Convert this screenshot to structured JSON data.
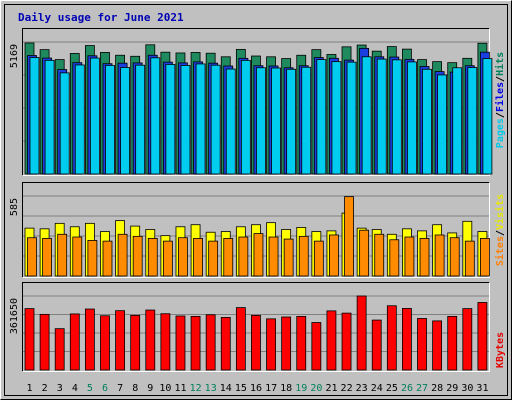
{
  "chart_data": [
    {
      "type": "bar",
      "title": "Daily usage for June 2021",
      "categories": [
        "1",
        "2",
        "3",
        "4",
        "5",
        "6",
        "7",
        "8",
        "9",
        "10",
        "11",
        "12",
        "13",
        "14",
        "15",
        "16",
        "17",
        "18",
        "19",
        "20",
        "21",
        "22",
        "23",
        "24",
        "25",
        "26",
        "27",
        "28",
        "29",
        "30",
        "31"
      ],
      "weekend_day_color": "#00805c",
      "weekend_days": [
        "5",
        "6",
        "12",
        "13",
        "19",
        "20",
        "26",
        "27"
      ],
      "y_max_label": "5169",
      "ylim": [
        0,
        5169
      ],
      "grid": true,
      "legend_words": [
        {
          "text": "Pages",
          "color": "#00c8e8"
        },
        {
          "text": "Files",
          "color": "#0000e8"
        },
        {
          "text": "Hits",
          "color": "#00805c"
        }
      ],
      "legend_separator": "/",
      "legend_separator_color": "#000000",
      "series": [
        {
          "name": "Hits",
          "color": "#1e8a5e",
          "values": [
            5130,
            4870,
            4480,
            4720,
            5030,
            4760,
            4650,
            4610,
            5060,
            4770,
            4740,
            4760,
            4730,
            4590,
            4880,
            4620,
            4590,
            4520,
            4650,
            4870,
            4680,
            4980,
            5050,
            4810,
            4990,
            4890,
            4480,
            4400,
            4360,
            4530,
            5120
          ]
        },
        {
          "name": "Files",
          "color": "#1a3ee0",
          "values": [
            4640,
            4540,
            4090,
            4360,
            4630,
            4320,
            4340,
            4350,
            4650,
            4380,
            4350,
            4390,
            4340,
            4230,
            4530,
            4240,
            4230,
            4160,
            4240,
            4560,
            4530,
            4460,
            4920,
            4590,
            4580,
            4490,
            4210,
            4010,
            3990,
            4240,
            4770
          ]
        },
        {
          "name": "Pages",
          "color": "#00ccf0",
          "values": [
            4560,
            4450,
            3960,
            4270,
            4540,
            4250,
            4170,
            4260,
            4550,
            4290,
            4250,
            4310,
            4260,
            4110,
            4450,
            4160,
            4150,
            4100,
            4180,
            4480,
            4400,
            4380,
            4590,
            4500,
            4470,
            4390,
            4100,
            3880,
            4160,
            4170,
            4520
          ]
        }
      ]
    },
    {
      "type": "bar",
      "categories": [
        "1",
        "2",
        "3",
        "4",
        "5",
        "6",
        "7",
        "8",
        "9",
        "10",
        "11",
        "12",
        "13",
        "14",
        "15",
        "16",
        "17",
        "18",
        "19",
        "20",
        "21",
        "22",
        "23",
        "24",
        "25",
        "26",
        "27",
        "28",
        "29",
        "30",
        "31"
      ],
      "y_max_label": "585",
      "ylim": [
        0,
        585
      ],
      "grid": true,
      "legend_words": [
        {
          "text": "Sites",
          "color": "#ff8000"
        },
        {
          "text": "Visits",
          "color": "#e8e800"
        }
      ],
      "legend_separator": "/",
      "legend_separator_color": "#000000",
      "series": [
        {
          "name": "Visits",
          "color": "#ffff00",
          "values": [
            350,
            345,
            385,
            360,
            385,
            325,
            405,
            365,
            340,
            295,
            360,
            375,
            320,
            325,
            360,
            375,
            390,
            340,
            355,
            325,
            330,
            460,
            350,
            340,
            305,
            345,
            330,
            375,
            315,
            400,
            325
          ]
        },
        {
          "name": "Sites",
          "color": "#ff8c00",
          "values": [
            280,
            275,
            305,
            285,
            260,
            255,
            305,
            290,
            275,
            255,
            280,
            275,
            255,
            275,
            285,
            310,
            285,
            270,
            290,
            255,
            300,
            580,
            335,
            305,
            265,
            285,
            275,
            300,
            280,
            255,
            275
          ]
        }
      ]
    },
    {
      "type": "bar",
      "categories": [
        "1",
        "2",
        "3",
        "4",
        "5",
        "6",
        "7",
        "8",
        "9",
        "10",
        "11",
        "12",
        "13",
        "14",
        "15",
        "16",
        "17",
        "18",
        "19",
        "20",
        "21",
        "22",
        "23",
        "24",
        "25",
        "26",
        "27",
        "28",
        "29",
        "30",
        "31"
      ],
      "y_max_label": "361650",
      "ylim": [
        0,
        361650
      ],
      "grid": true,
      "legend_words": [
        {
          "text": "KBytes",
          "color": "#e80000"
        }
      ],
      "series": [
        {
          "name": "KBytes",
          "color": "#ff0000",
          "values": [
            300000,
            272000,
            202000,
            274000,
            298000,
            265000,
            290000,
            267000,
            293000,
            275000,
            264000,
            262000,
            270000,
            257000,
            305000,
            267000,
            250000,
            259000,
            262000,
            232000,
            289000,
            278000,
            361650,
            244000,
            314000,
            301000,
            252000,
            240000,
            262000,
            300000,
            330000
          ]
        }
      ]
    }
  ]
}
